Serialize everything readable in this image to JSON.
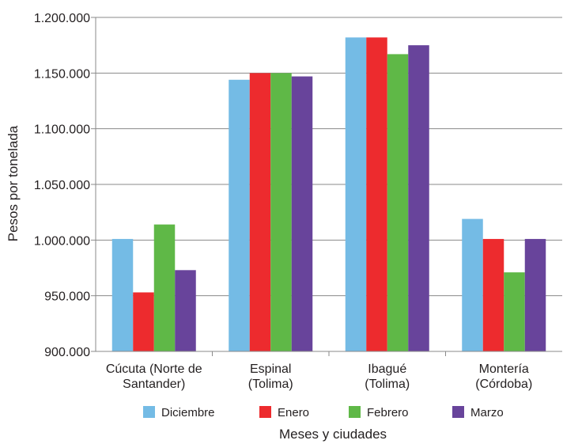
{
  "chart_data": {
    "type": "bar",
    "categories": [
      [
        "Cúcuta (Norte de",
        "Santander)"
      ],
      [
        "Espinal",
        "(Tolima)"
      ],
      [
        "Ibagué",
        "(Tolima)"
      ],
      [
        "Montería",
        "(Córdoba)"
      ]
    ],
    "series": [
      {
        "name": "Diciembre",
        "color": "#74bbe5",
        "values": [
          1001000,
          1144000,
          1182000,
          1019000
        ]
      },
      {
        "name": "Enero",
        "color": "#ed2b2e",
        "values": [
          953000,
          1150000,
          1182000,
          1001000
        ]
      },
      {
        "name": "Febrero",
        "color": "#5fb847",
        "values": [
          1014000,
          1150000,
          1167000,
          971000
        ]
      },
      {
        "name": "Marzo",
        "color": "#68449b",
        "values": [
          973000,
          1147000,
          1175000,
          1001000
        ]
      }
    ],
    "xlabel": "Meses y ciudades",
    "ylabel": "Pesos por tonelada",
    "ylim": [
      900000,
      1200000
    ],
    "yticks": [
      900000,
      950000,
      1000000,
      1050000,
      1100000,
      1150000,
      1200000
    ],
    "ytick_labels": [
      "900.000",
      "950.000",
      "1.000.000",
      "1.050.000",
      "1.100.000",
      "1.150.000",
      "1.200.000"
    ],
    "grid": true,
    "legend_position": "bottom"
  }
}
